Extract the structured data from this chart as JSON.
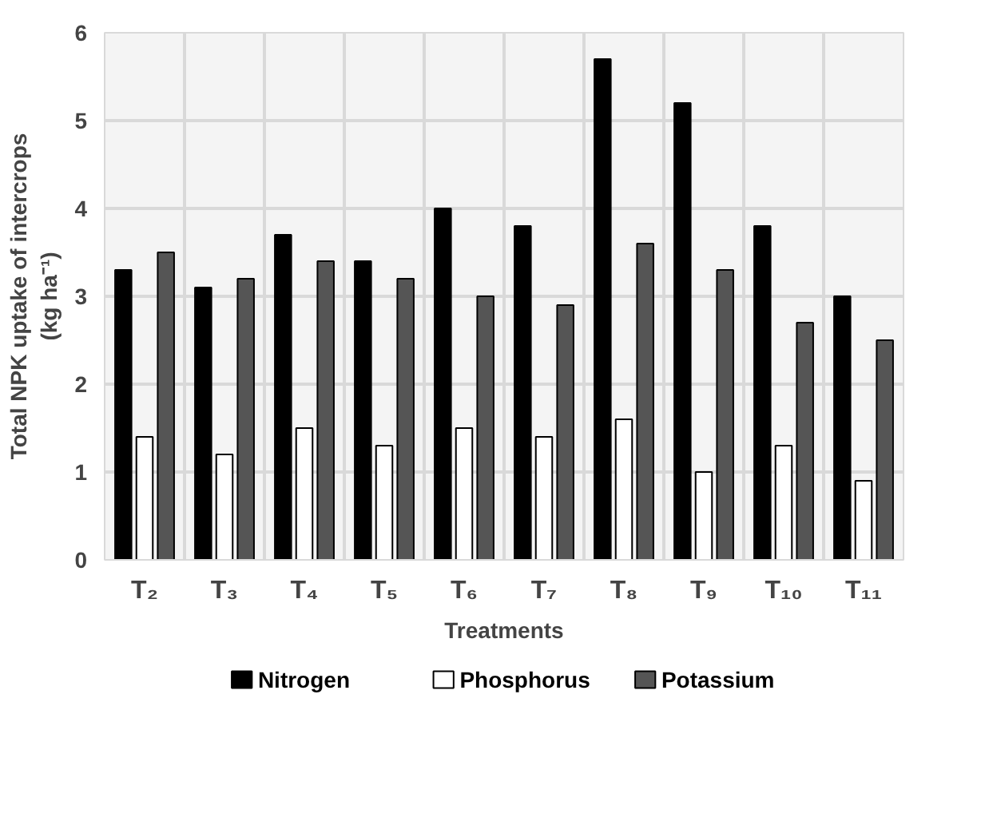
{
  "chart_data": {
    "type": "bar",
    "xlabel": "Treatments",
    "ylabel": "Total NPK uptake of intercrops\n(kg ha⁻¹)",
    "categories": [
      "T₂",
      "T₃",
      "T₄",
      "T₅",
      "T₆",
      "T₇",
      "T₈",
      "T₉",
      "T₁₀",
      "T₁₁"
    ],
    "series": [
      {
        "name": "Nitrogen",
        "color": "#000000",
        "values": [
          3.3,
          3.1,
          3.7,
          3.4,
          4.0,
          3.8,
          5.7,
          5.2,
          3.8,
          3.0
        ]
      },
      {
        "name": "Phosphorus",
        "color": "#ffffff",
        "values": [
          1.4,
          1.2,
          1.5,
          1.3,
          1.5,
          1.4,
          1.6,
          1.0,
          1.3,
          0.9
        ]
      },
      {
        "name": "Potassium",
        "color": "#555555",
        "values": [
          3.5,
          3.2,
          3.4,
          3.2,
          3.0,
          2.9,
          3.6,
          3.3,
          2.7,
          2.5
        ]
      }
    ],
    "ylim": [
      0,
      6
    ],
    "yticks": [
      0,
      1,
      2,
      3,
      4,
      5,
      6
    ],
    "grid": true,
    "legend": "bottom"
  }
}
